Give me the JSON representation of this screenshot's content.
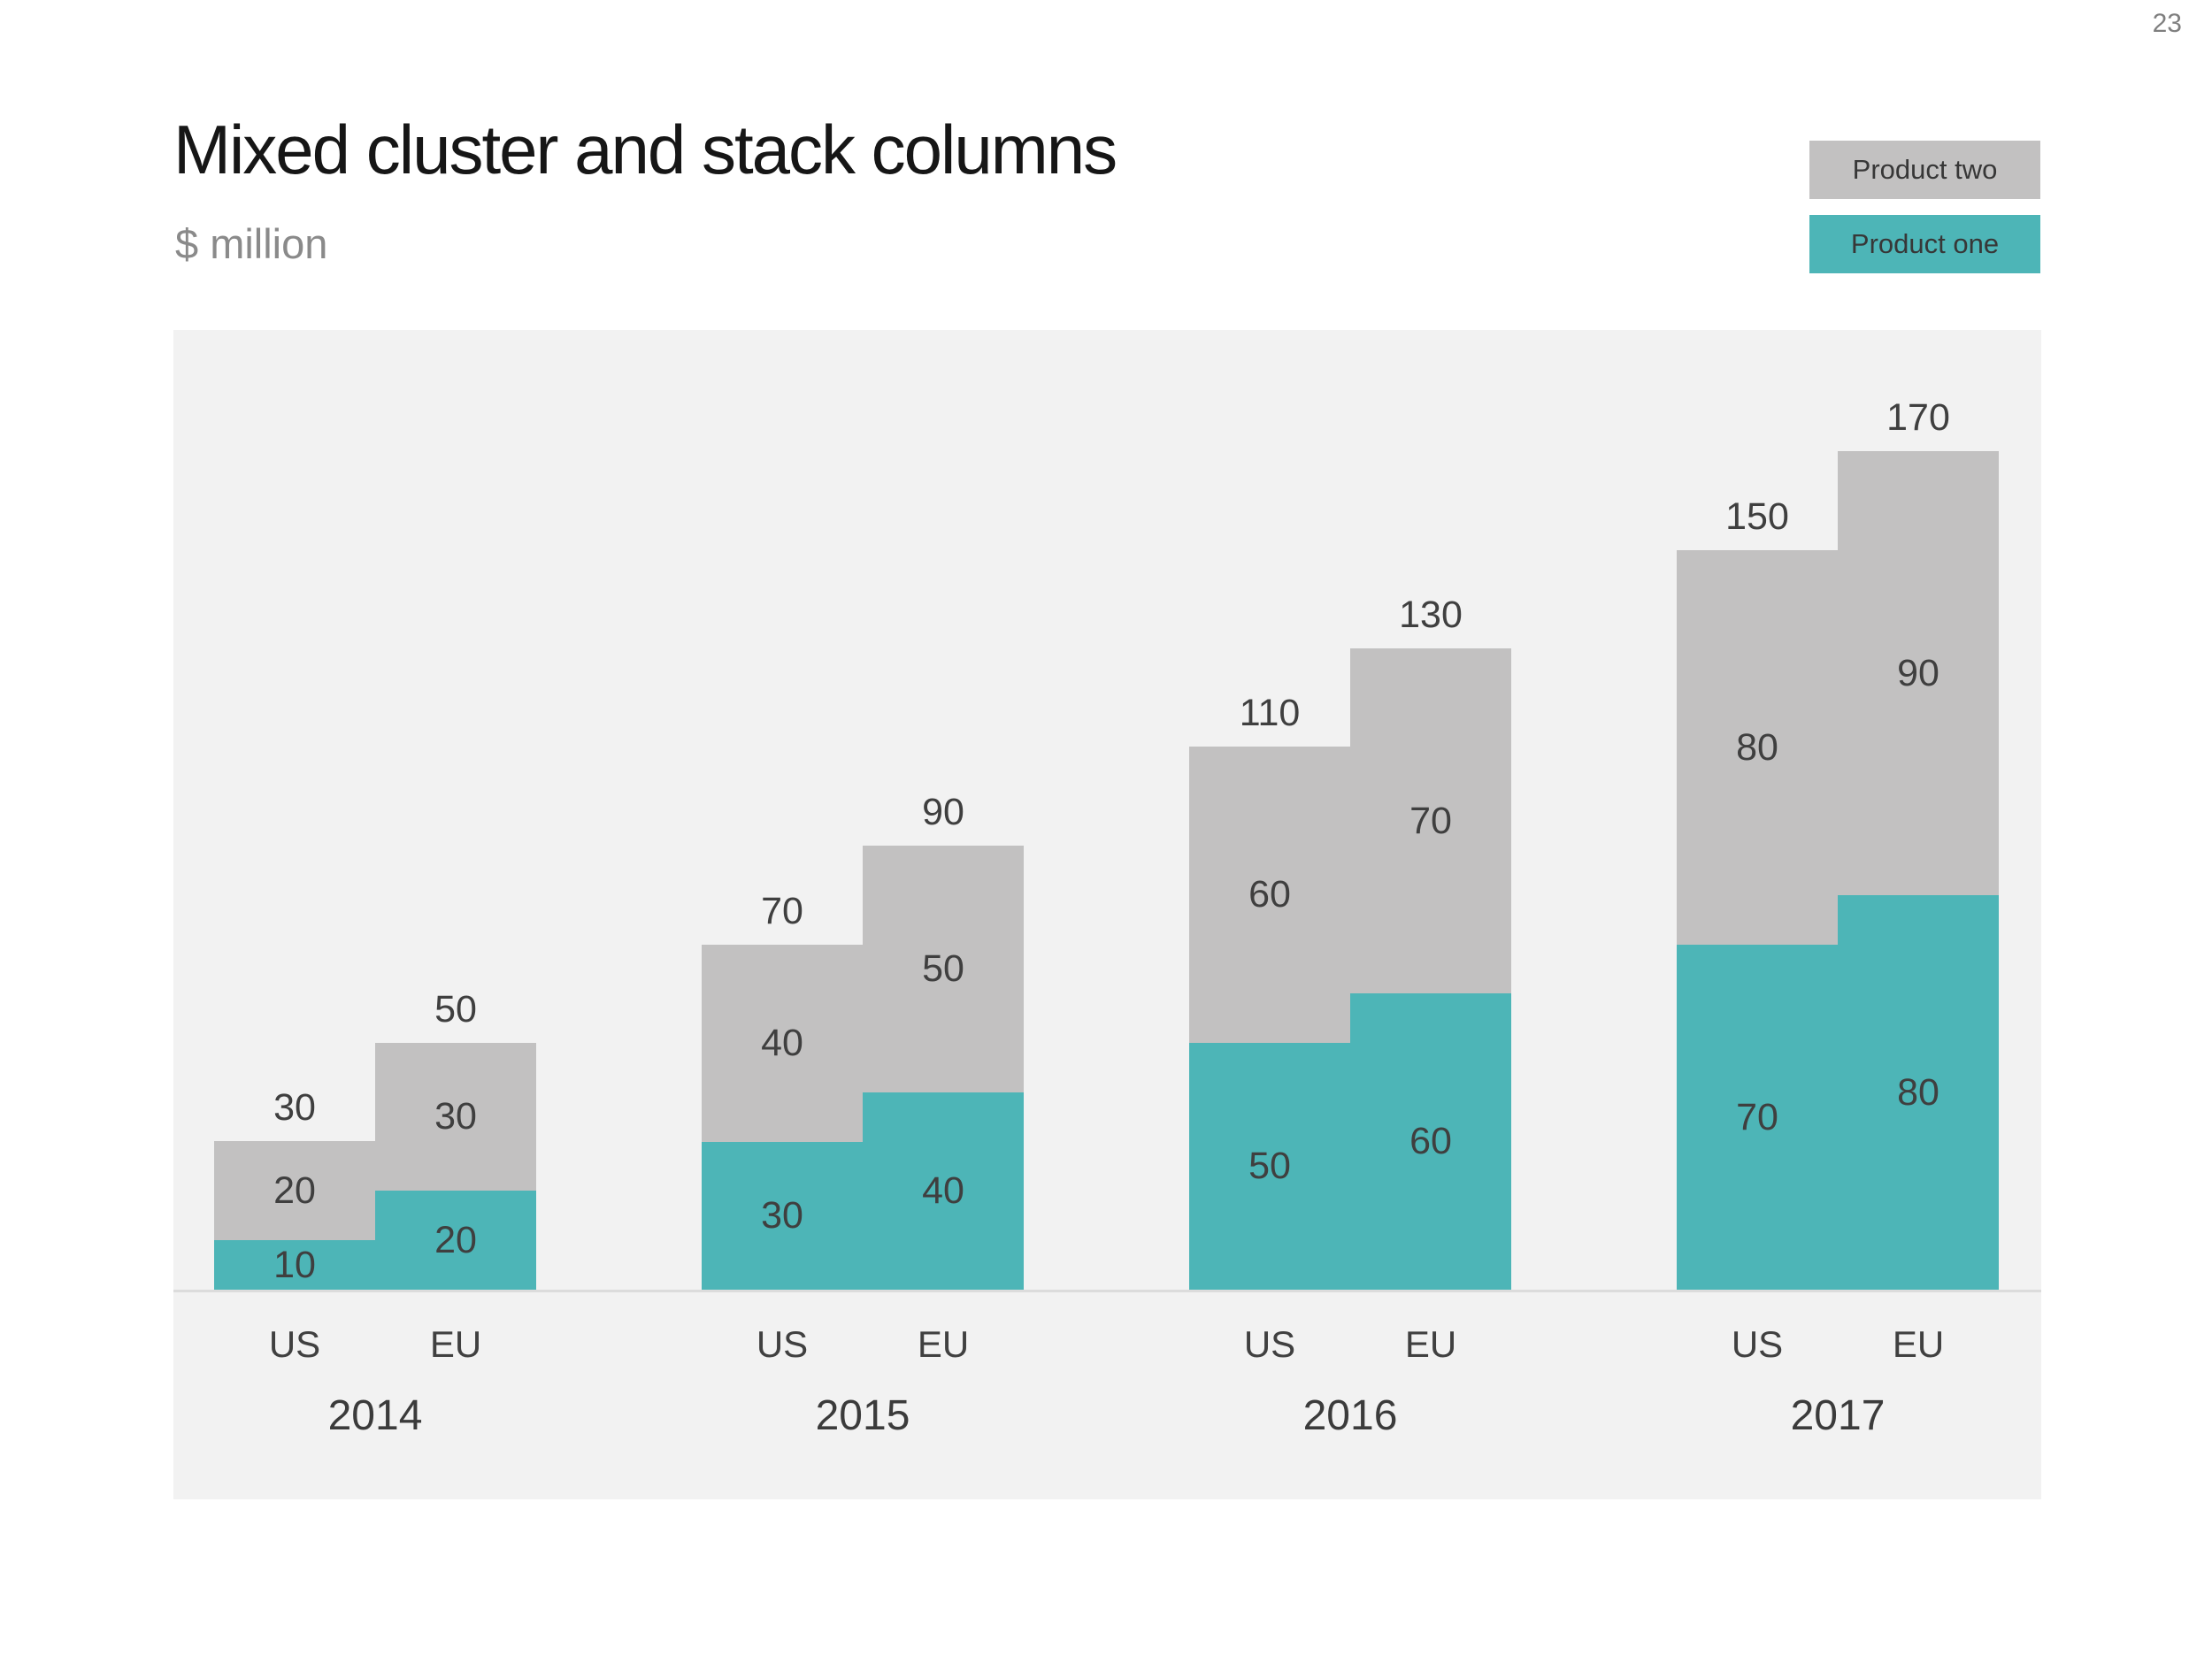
{
  "page": {
    "number": "23",
    "title": "Mixed cluster and stack columns",
    "subtitle": "$ million"
  },
  "legend": {
    "items": [
      {
        "label": "Product two",
        "series_key": "product_two"
      },
      {
        "label": "Product one",
        "series_key": "product_one"
      }
    ]
  },
  "colors": {
    "product_one": "#4db5b7",
    "product_two": "#c2c1c1",
    "chart_background": "#f2f2f2",
    "axis_line": "#dcdcdc",
    "data_label_text": "#3f3f3f",
    "title_text": "#161616",
    "subtitle_text": "#8a8a8a",
    "page_number_text": "#7f7f7f"
  },
  "chart_data": {
    "type": "bar",
    "stacked": true,
    "title": "Mixed cluster and stack columns",
    "ylabel": "$ million",
    "value_axis": {
      "min": 0,
      "max_total_shown": 170,
      "gridlines": false,
      "tick_labels": false
    },
    "legend_position": "top-right",
    "series_names": [
      "Product one",
      "Product two"
    ],
    "groups": [
      {
        "year": "2014",
        "columns": [
          {
            "region": "US",
            "product_one": 10,
            "product_two": 20,
            "total": 30
          },
          {
            "region": "EU",
            "product_one": 20,
            "product_two": 30,
            "total": 50
          }
        ]
      },
      {
        "year": "2015",
        "columns": [
          {
            "region": "US",
            "product_one": 30,
            "product_two": 40,
            "total": 70
          },
          {
            "region": "EU",
            "product_one": 40,
            "product_two": 50,
            "total": 90
          }
        ]
      },
      {
        "year": "2016",
        "columns": [
          {
            "region": "US",
            "product_one": 50,
            "product_two": 60,
            "total": 110
          },
          {
            "region": "EU",
            "product_one": 60,
            "product_two": 70,
            "total": 130
          }
        ]
      },
      {
        "year": "2017",
        "columns": [
          {
            "region": "US",
            "product_one": 70,
            "product_two": 80,
            "total": 150
          },
          {
            "region": "EU",
            "product_one": 80,
            "product_two": 90,
            "total": 170
          }
        ]
      }
    ]
  }
}
